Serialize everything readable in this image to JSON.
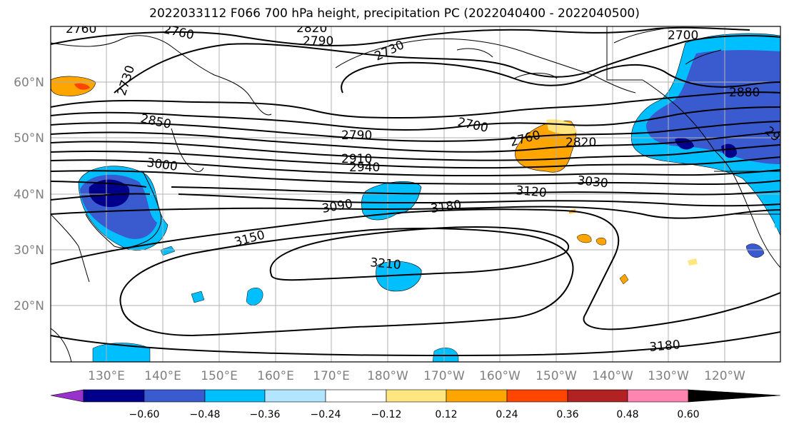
{
  "title": "2022033112 F066 700 hPa height, precipitation PC (2022040400 - 2022040500)",
  "longitude_labels": [
    "130°E",
    "140°E",
    "150°E",
    "160°E",
    "170°E",
    "180°W",
    "170°W",
    "160°W",
    "150°W",
    "140°W",
    "130°W",
    "120°W"
  ],
  "latitude_labels": [
    "60°N",
    "50°N",
    "40°N",
    "30°N",
    "20°N"
  ],
  "contour_labels": [
    "2760",
    "2760",
    "2820",
    "2790",
    "2730",
    "2730",
    "2700",
    "2880",
    "2850",
    "2790",
    "2700",
    "2760",
    "2820",
    "2910",
    "2940",
    "3000",
    "3030",
    "3120",
    "3090",
    "3180",
    "3150",
    "3210",
    "3180",
    "29"
  ],
  "colorbar": {
    "tick_labels": [
      "−0.60",
      "−0.48",
      "−0.36",
      "−0.24",
      "−0.12",
      "0.12",
      "0.24",
      "0.36",
      "0.48",
      "0.60"
    ],
    "colors": [
      "#9932cc",
      "#00008b",
      "#3a5bcf",
      "#00bfff",
      "#b2e5ff",
      "#ffffff",
      "#ffe680",
      "#ffa500",
      "#ff4500",
      "#b22222",
      "#ff85b0"
    ]
  }
}
